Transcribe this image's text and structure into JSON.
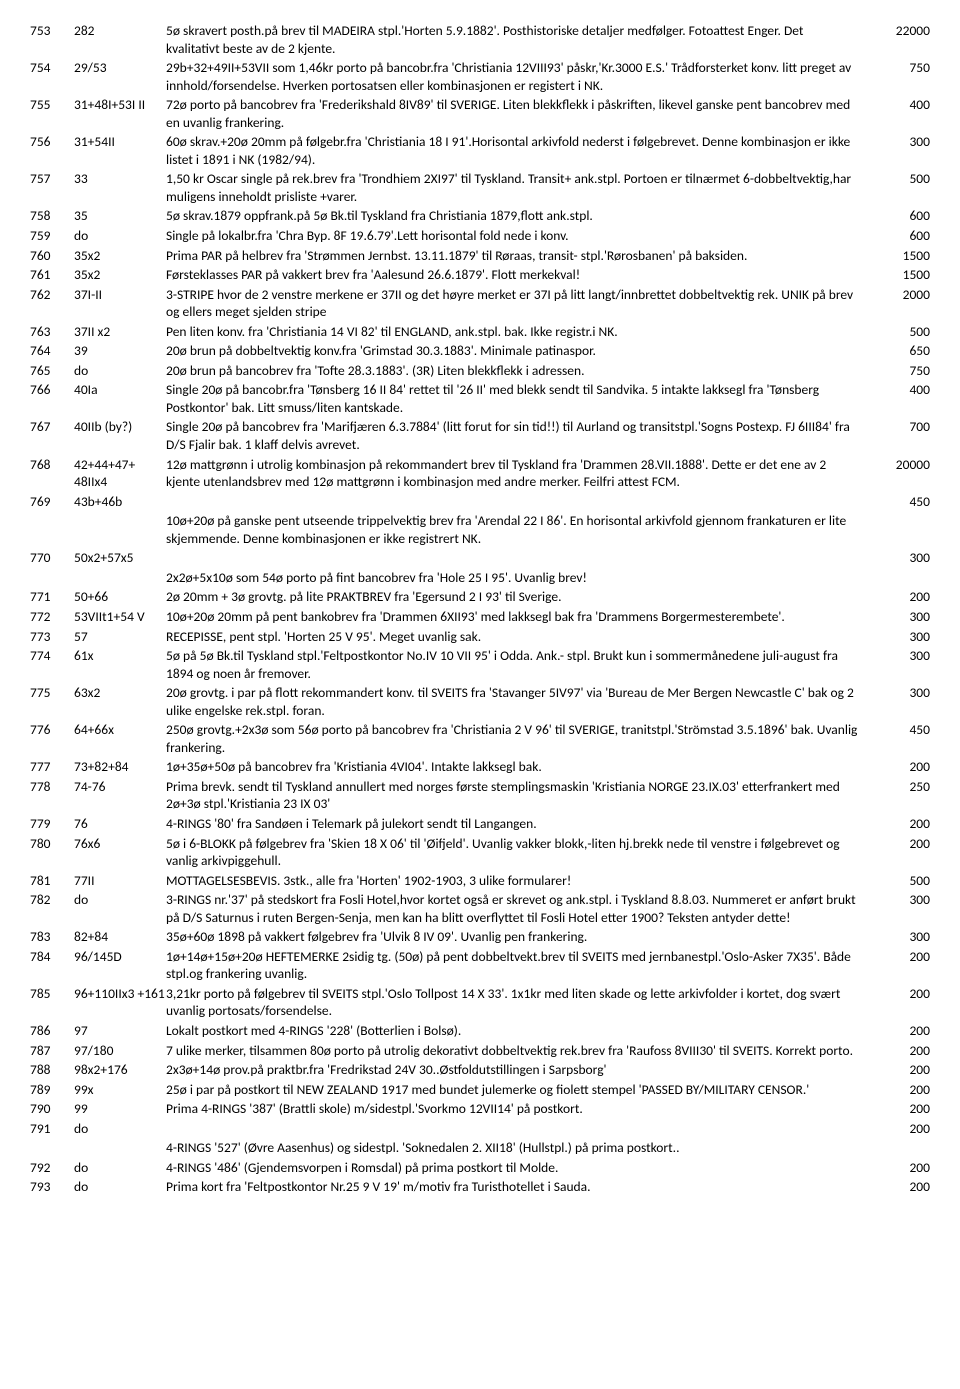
{
  "rows": [
    {
      "n": "753",
      "r": "282",
      "d": "5ø skravert posth.på brev til MADEIRA stpl.'Horten 5.9.1882'. Posthistoriske detaljer medfølger. Fotoattest Enger. Det kvalitativt beste av de 2 kjente.",
      "p": "22000"
    },
    {
      "n": "754",
      "r": "29/53",
      "d": "29b+32+49II+53VII som 1,46kr porto på bancobr.fra 'Christiania 12VIII93' påskr,'Kr.3000 E.S.' Trådforsterket konv. litt preget av innhold/forsendelse. Hverken portosatsen eller kombinasjonen er registert i NK.",
      "p": "750"
    },
    {
      "n": "755",
      "r": "31+48I+53I II",
      "d": "72ø porto på bancobrev fra 'Frederikshald 8IV89' til SVERIGE. Liten blekkflekk i påskriften, likevel ganske pent bancobrev med en uvanlig frankering.",
      "p": "400"
    },
    {
      "n": "756",
      "r": "31+54II",
      "d": "60ø skrav.+20ø 20mm på følgebr.fra 'Christiania 18 I 91'.Horisontal arkivfold nederst i følgebrevet. Denne kombinasjon er ikke listet i 1891 i NK (1982/94).",
      "p": "300"
    },
    {
      "n": "757",
      "r": "33",
      "d": "1,50 kr Oscar single på rek.brev fra 'Trondhiem 2XI97' til Tyskland. Transit+ ank.stpl. Portoen er tilnærmet 6-dobbeltvektig,har muligens inneholdt prisliste +varer.",
      "p": "500"
    },
    {
      "n": "758",
      "r": "35",
      "d": "5ø skrav.1879 oppfrank.på 5ø Bk.til Tyskland fra Christiania 1879,flott ank.stpl.",
      "p": "600"
    },
    {
      "n": "759",
      "r": "do",
      "d": "Single på lokalbr.fra 'Chra Byp. 8F 19.6.79'.Lett horisontal fold nede i konv.",
      "p": "600"
    },
    {
      "n": "760",
      "r": "35x2",
      "d": "Prima PAR på helbrev fra 'Strømmen Jernbst. 13.11.1879' til Røraas, transit- stpl.'Rørosbanen' på baksiden.",
      "p": "1500"
    },
    {
      "n": "761",
      "r": "35x2",
      "d": "Førsteklasses PAR på vakkert brev fra 'Aalesund 26.6.1879'. Flott merkekval!",
      "p": "1500"
    },
    {
      "n": "762",
      "r": "37I-II",
      "d": "3-STRIPE hvor de 2 venstre merkene er 37II og det høyre merket er 37I på litt langt/innbrettet dobbeltvektig rek. UNIK på brev og ellers meget sjelden stripe",
      "p": "2000"
    },
    {
      "n": "763",
      "r": "37II x2",
      "d": "Pen liten konv. fra 'Christiania 14 VI 82' til ENGLAND, ank.stpl. bak. Ikke registr.i NK.",
      "p": "500"
    },
    {
      "n": "764",
      "r": "39",
      "d": "20ø brun på dobbeltvektig konv.fra 'Grimstad 30.3.1883'. Minimale patinaspor.",
      "p": "650"
    },
    {
      "n": "765",
      "r": "do",
      "d": "20ø brun på bancobrev fra 'Tofte 28.3.1883'. (3R) Liten blekkflekk i adressen.",
      "p": "750"
    },
    {
      "n": "766",
      "r": "40Ia",
      "d": "Single 20ø på bancobr.fra 'Tønsberg 16 II 84' rettet til '26 II' med blekk sendt til Sandvika. 5 intakte lakksegl fra 'Tønsberg Postkontor' bak. Litt smuss/liten kantskade.",
      "p": "400"
    },
    {
      "n": "767",
      "r": "40IIb (by?)",
      "d": "Single 20ø på bancobrev fra 'Marifjæren 6.3.7884' (litt forut for sin tid!!) til Aurland og transitstpl.'Sogns Postexp. FJ 6III84' fra D/S Fjalir bak. 1 klaff delvis avrevet.",
      "p": "700"
    },
    {
      "n": "768",
      "r": "42+44+47+ 48IIx4",
      "d": "12ø mattgrønn i utrolig kombinasjon på rekommandert brev til Tyskland fra 'Drammen 28.VII.1888'. Dette er det ene av 2 kjente utenlandsbrev med 12ø mattgrønn i kombinasjon med andre merker. Feilfri attest FCM.",
      "p": "20000"
    },
    {
      "n": "769",
      "r": "43b+46b",
      "d": "10ø+20ø på ganske pent utseende trippelvektig brev fra 'Arendal 22 I 86'. En horisontal arkivfold gjennom frankaturen er lite skjemmende. Denne kombinasjonen er ikke registrert NK.",
      "p": "450",
      "blank_first": true
    },
    {
      "n": "770",
      "r": "50x2+57x5",
      "d": "2x2ø+5x10ø som 54ø porto på fint bancobrev fra 'Hole 25 I 95'. Uvanlig brev!",
      "p": "300",
      "blank_first": true
    },
    {
      "n": "771",
      "r": "50+66",
      "d": "2ø 20mm + 3ø grovtg. på lite PRAKTBREV fra 'Egersund 2 I 93' til Sverige.",
      "p": "200"
    },
    {
      "n": "772",
      "r": "53VIIt1+54 V",
      "d": "10ø+20ø 20mm på pent bankobrev fra 'Drammen 6XII93' med lakksegl bak fra 'Drammens Borgermesterembete'.",
      "p": "300"
    },
    {
      "n": "773",
      "r": "57",
      "d": "RECEPISSE, pent stpl. 'Horten 25 V 95'. Meget uvanlig sak.",
      "p": "300"
    },
    {
      "n": "774",
      "r": "61x",
      "d": "5ø på 5ø Bk.til Tyskland stpl.'Feltpostkontor No.IV 10 VII 95' i Odda. Ank.- stpl. Brukt kun i sommermånedene juli-august fra 1894 og noen år fremover.",
      "p": "300"
    },
    {
      "n": "775",
      "r": "63x2",
      "d": "20ø grovtg. i par på flott rekommandert konv. til SVEITS fra 'Stavanger 5IV97' via 'Bureau de Mer Bergen Newcastle C' bak og 2 ulike engelske rek.stpl. foran.",
      "p": "300"
    },
    {
      "n": "776",
      "r": "64+66x",
      "d": "250ø grovtg.+2x3ø som 56ø porto på bancobrev fra 'Christiania 2 V 96' til SVERIGE, tranitstpl.'Strömstad 3.5.1896' bak. Uvanlig frankering.",
      "p": "450"
    },
    {
      "n": "777",
      "r": "73+82+84",
      "d": "1ø+35ø+50ø på bancobrev fra 'Kristiania 4VI04'. Intakte lakksegl bak.",
      "p": "200"
    },
    {
      "n": "778",
      "r": "74-76",
      "d": "Prima brevk. sendt til Tyskland annullert med norges første stemplingsmaskin 'Kristiania NORGE 23.IX.03' etterfrankert med 2ø+3ø stpl.'Kristiania 23 IX 03'",
      "p": "250"
    },
    {
      "n": "779",
      "r": "76",
      "d": "4-RINGS '80' fra Sandøen i Telemark på julekort sendt til Langangen.",
      "p": "200"
    },
    {
      "n": "780",
      "r": "76x6",
      "d": "5ø i 6-BLOKK på følgebrev fra 'Skien 18 X 06' til 'Øifjeld'. Uvanlig vakker blokk,-liten hj.brekk nede til venstre i følgebrevet og vanlig arkivpiggehull.",
      "p": "200"
    },
    {
      "n": "781",
      "r": "77II",
      "d": "MOTTAGELSESBEVIS. 3stk., alle fra 'Horten' 1902-1903, 3 ulike formularer!",
      "p": "500"
    },
    {
      "n": "782",
      "r": "do",
      "d": "3-RINGS nr.'37' på stedskort fra Fosli Hotel,hvor kortet også er skrevet og ank.stpl. i Tyskland 8.8.03. Nummeret er anført brukt på D/S Saturnus i ruten Bergen-Senja, men kan ha blitt overflyttet til Fosli Hotel etter 1900? Teksten antyder dette!",
      "p": "300"
    },
    {
      "n": "783",
      "r": "82+84",
      "d": "35ø+60ø 1898 på vakkert følgebrev fra 'Ulvik 8 IV 09'. Uvanlig pen frankering.",
      "p": "300"
    },
    {
      "n": "784",
      "r": "96/145D",
      "d": "1ø+14ø+15ø+20ø HEFTEMERKE 2sidig tg. (50ø) på pent dobbeltvekt.brev til SVEITS med jernbanestpl.'Oslo-Asker 7X35'. Både stpl.og frankering uvanlig.",
      "p": "200"
    },
    {
      "n": "785",
      "r": "96+110IIx3 +161",
      "d": "3,21kr porto på følgebrev til SVEITS stpl.'Oslo Tollpost 14 X 33'. 1x1kr med liten skade og lette arkivfolder i kortet, dog svært uvanlig portosats/forsendelse.",
      "p": "200"
    },
    {
      "n": "786",
      "r": "97",
      "d": "Lokalt postkort med 4-RINGS '228' (Botterlien i Bolsø).",
      "p": "200"
    },
    {
      "n": "787",
      "r": "97/180",
      "d": "7 ulike merker, tilsammen 80ø porto på utrolig dekorativt dobbeltvektig rek.brev fra 'Raufoss 8VIII30' til SVEITS. Korrekt porto.",
      "p": "200"
    },
    {
      "n": "788",
      "r": "98x2+176",
      "d": "2x3ø+14ø prov.på praktbr.fra 'Fredrikstad 24V 30..Østfoldutstillingen i Sarpsborg'",
      "p": "200"
    },
    {
      "n": "789",
      "r": "99x",
      "d": "25ø i par på postkort til NEW ZEALAND 1917 med bundet julemerke og fiolett stempel 'PASSED BY/MILITARY CENSOR.'",
      "p": "200"
    },
    {
      "n": "790",
      "r": "99",
      "d": "Prima 4-RINGS '387' (Brattli skole) m/sidestpl.'Svorkmo 12VII14' på postkort.",
      "p": "200"
    },
    {
      "n": "791",
      "r": "do",
      "d": "4-RINGS '527' (Øvre Aasenhus) og sidestpl. 'Soknedalen 2. XII18' (Hullstpl.) på prima postkort..",
      "p": "200",
      "blank_first": true
    },
    {
      "n": "792",
      "r": "do",
      "d": "4-RINGS '486' (Gjendemsvorpen i Romsdal) på prima postkort til Molde.",
      "p": "200"
    },
    {
      "n": "793",
      "r": "do",
      "d": "Prima kort fra 'Feltpostkontor Nr.25 9 V 19' m/motiv fra Turisthotellet i Sauda.",
      "p": "200"
    }
  ]
}
